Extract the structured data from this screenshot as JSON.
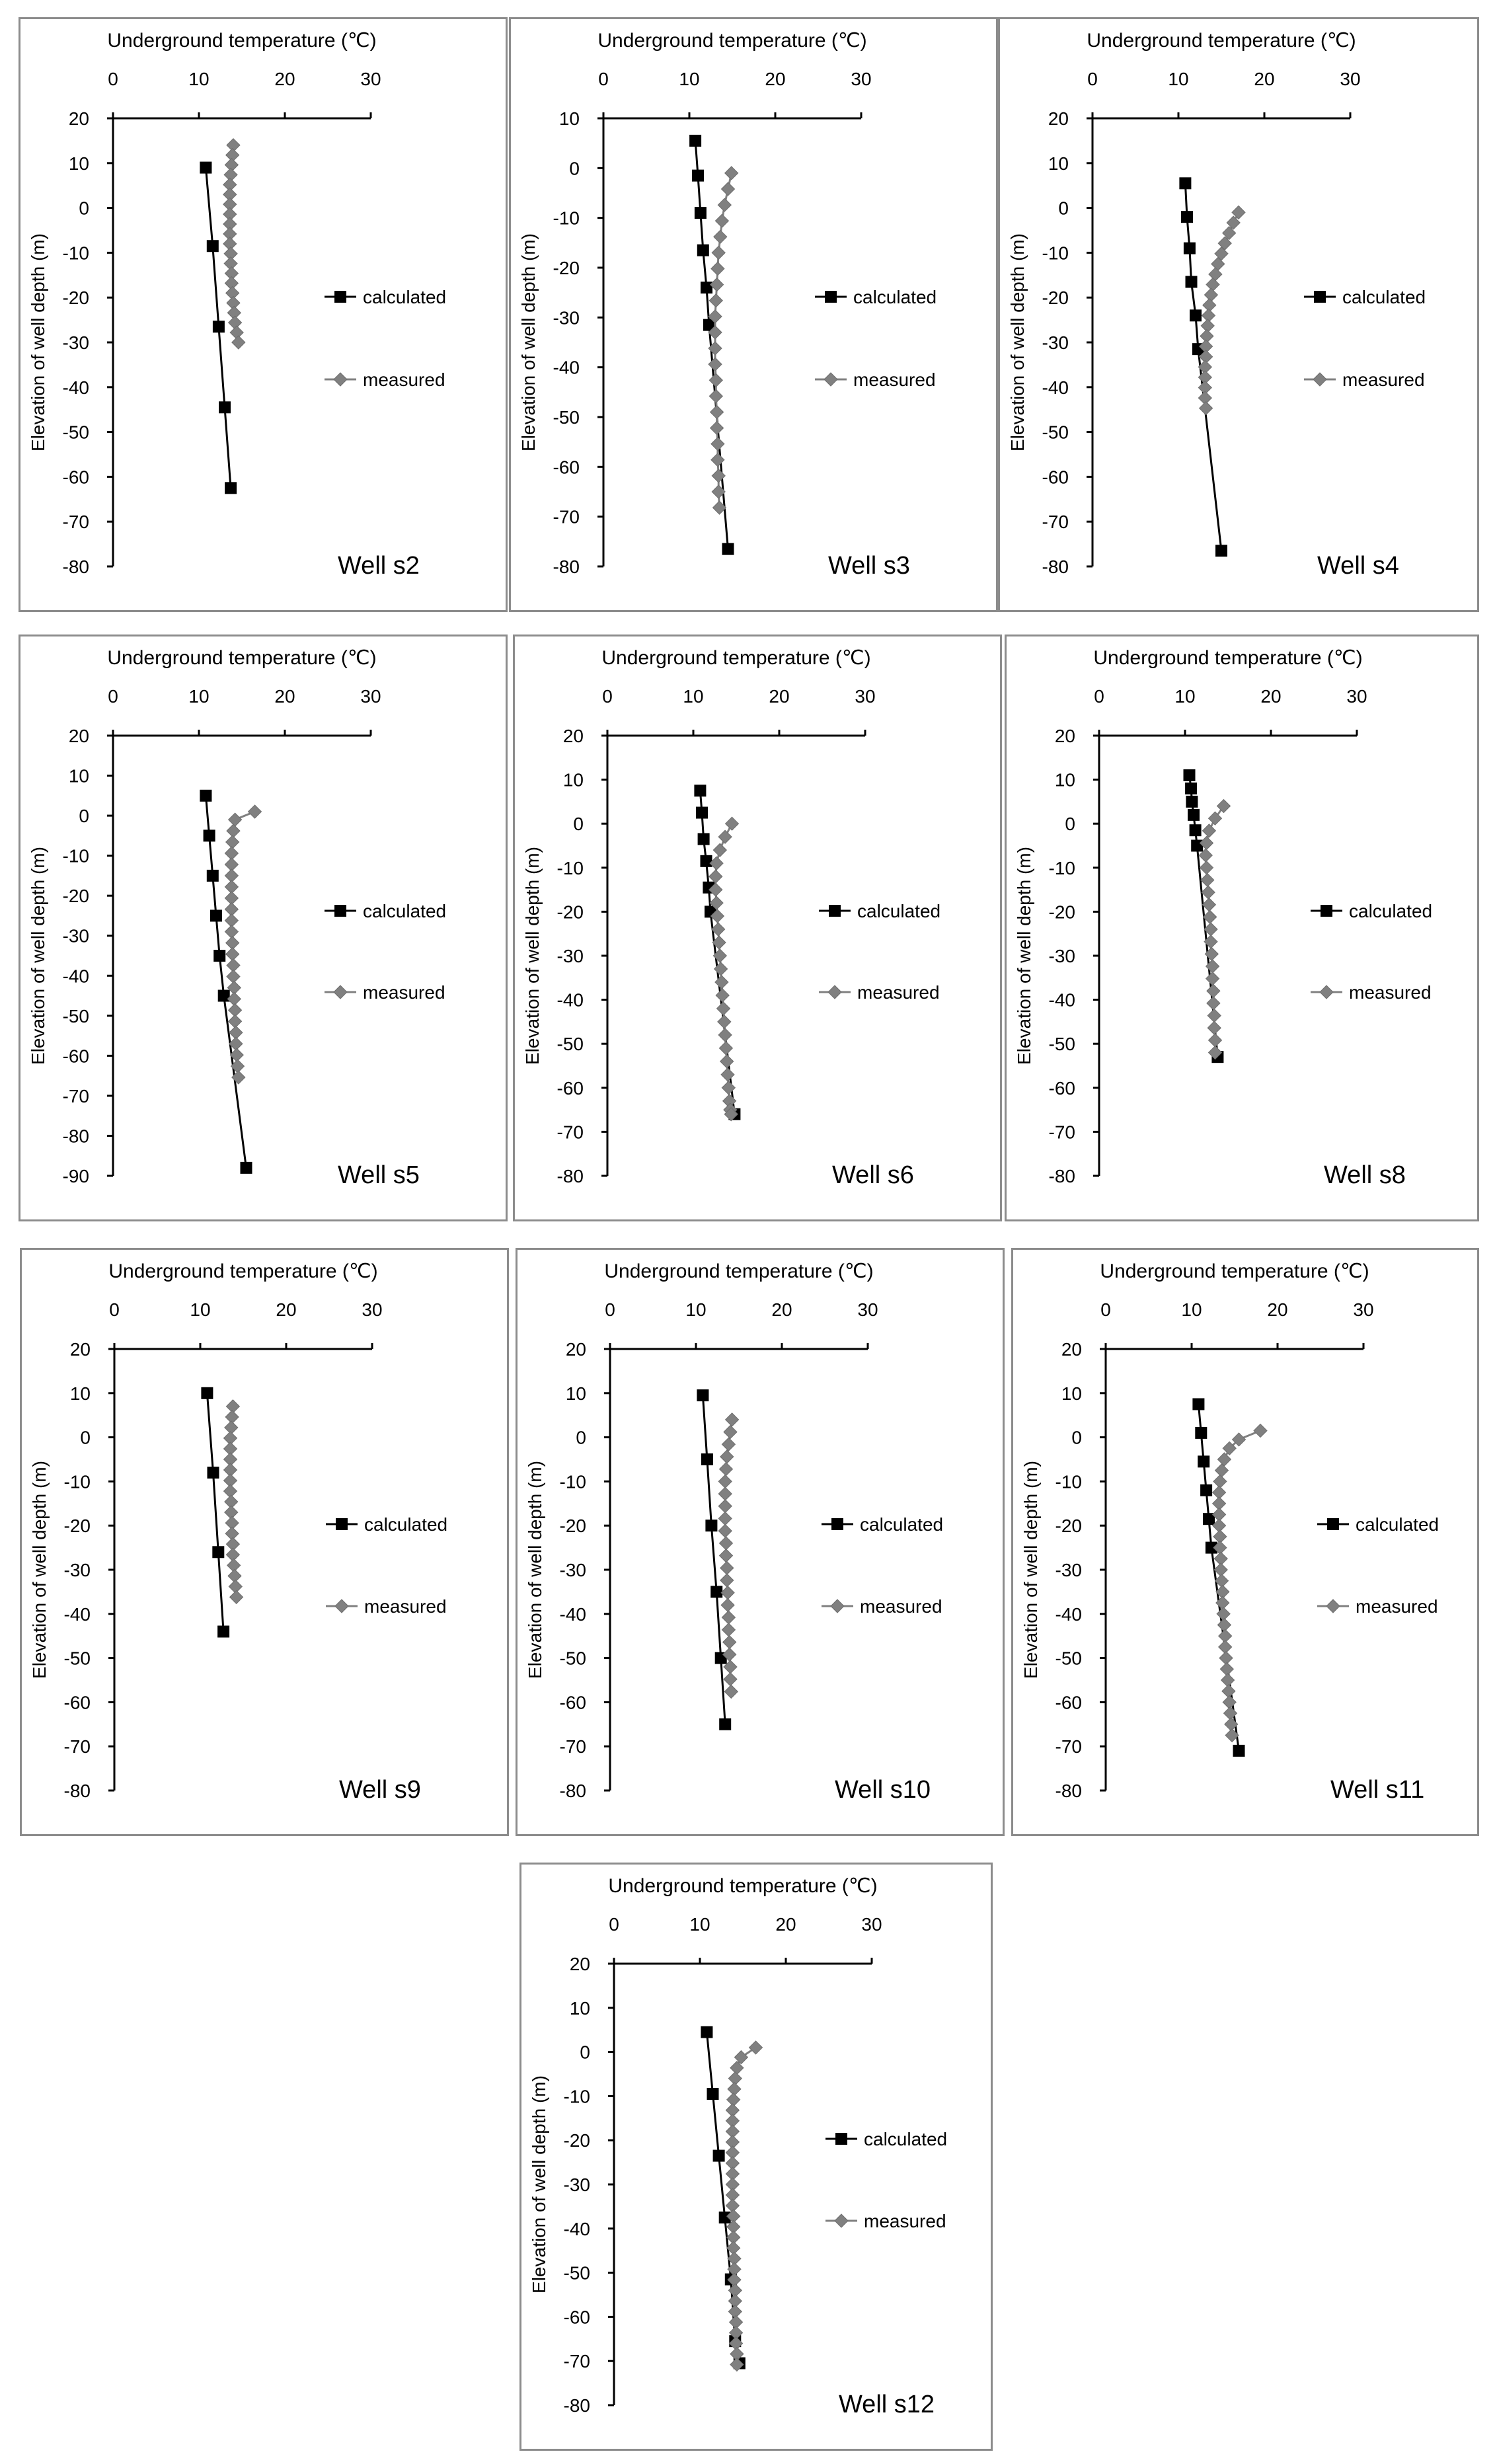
{
  "figure": {
    "common": {
      "xlabel": "Underground temperature (℃)",
      "ylabel": "Elevation of well depth (m)",
      "xlim": [
        0,
        30
      ],
      "xticks": [
        0,
        10,
        20,
        30
      ],
      "legend": [
        "calculated",
        "measured"
      ],
      "colors": {
        "calculated": "#000000",
        "measured": "#808080"
      }
    }
  },
  "chart_data": [
    {
      "type": "line",
      "title": "Well s2",
      "xlabel": "Underground temperature (℃)",
      "ylabel": "Elevation of well depth (m)",
      "xlim": [
        0,
        30
      ],
      "ylim": [
        -80,
        20
      ],
      "xticks": [
        0,
        10,
        20,
        30
      ],
      "yticks": [
        20,
        10,
        0,
        -10,
        -20,
        -30,
        -40,
        -50,
        -60,
        -70,
        -80
      ],
      "series": [
        {
          "name": "calculated",
          "x": [
            10.8,
            11.6,
            12.3,
            13.0,
            13.7
          ],
          "y": [
            9,
            -8.5,
            -26.5,
            -44.5,
            -62.5
          ]
        },
        {
          "name": "measured",
          "x": [
            14.0,
            13.9,
            13.8,
            13.7,
            13.6,
            13.6,
            13.6,
            13.6,
            13.6,
            13.6,
            13.6,
            13.7,
            13.7,
            13.8,
            13.8,
            13.9,
            14.0,
            14.1,
            14.2,
            14.4,
            14.6
          ],
          "y": [
            14,
            11.8,
            9.6,
            7.4,
            5.2,
            3.0,
            0.8,
            -1.4,
            -3.6,
            -5.8,
            -8.0,
            -10.2,
            -12.4,
            -14.6,
            -16.8,
            -19.0,
            -21.2,
            -23.4,
            -25.6,
            -27.8,
            -30.0
          ]
        }
      ]
    },
    {
      "type": "line",
      "title": "Well s3",
      "xlabel": "Underground temperature (℃)",
      "ylabel": "Elevation of well depth (m)",
      "xlim": [
        0,
        30
      ],
      "ylim": [
        -80,
        10
      ],
      "xticks": [
        0,
        10,
        20,
        30
      ],
      "yticks": [
        10,
        0,
        -10,
        -20,
        -30,
        -40,
        -50,
        -60,
        -70,
        -80
      ],
      "series": [
        {
          "name": "calculated",
          "x": [
            10.7,
            11.0,
            11.3,
            11.6,
            12.0,
            12.3,
            14.5
          ],
          "y": [
            5.5,
            -1.5,
            -9,
            -16.5,
            -24,
            -31.5,
            -76.5
          ]
        },
        {
          "name": "measured",
          "x": [
            14.9,
            14.5,
            14.1,
            13.8,
            13.6,
            13.4,
            13.3,
            13.2,
            13.1,
            13.0,
            13.0,
            13.0,
            13.0,
            13.1,
            13.1,
            13.2,
            13.2,
            13.3,
            13.3,
            13.4,
            13.4,
            13.5
          ],
          "y": [
            -1.0,
            -4.2,
            -7.4,
            -10.6,
            -13.8,
            -17.0,
            -20.2,
            -23.4,
            -26.6,
            -29.8,
            -33.0,
            -36.2,
            -39.4,
            -42.6,
            -45.8,
            -49.0,
            -52.2,
            -55.4,
            -58.6,
            -61.8,
            -65.0,
            -68.2
          ]
        }
      ]
    },
    {
      "type": "line",
      "title": "Well s4",
      "xlabel": "Underground temperature (℃)",
      "ylabel": "Elevation of well depth (m)",
      "xlim": [
        0,
        30
      ],
      "ylim": [
        -80,
        20
      ],
      "xticks": [
        0,
        10,
        20,
        30
      ],
      "yticks": [
        20,
        10,
        0,
        -10,
        -20,
        -30,
        -40,
        -50,
        -60,
        -70,
        -80
      ],
      "series": [
        {
          "name": "calculated",
          "x": [
            10.8,
            11.0,
            11.3,
            11.5,
            12.0,
            12.3,
            15.0
          ],
          "y": [
            5.5,
            -2,
            -9,
            -16.5,
            -24,
            -31.5,
            -76.5
          ]
        },
        {
          "name": "measured",
          "x": [
            17.0,
            16.4,
            15.9,
            15.4,
            15.0,
            14.6,
            14.3,
            14.0,
            13.8,
            13.6,
            13.5,
            13.4,
            13.3,
            13.2,
            13.2,
            13.1,
            13.1,
            13.1,
            13.1,
            13.2
          ],
          "y": [
            -1,
            -3.3,
            -5.6,
            -7.9,
            -10.2,
            -12.5,
            -14.8,
            -17.1,
            -19.4,
            -21.7,
            -24.0,
            -26.3,
            -28.6,
            -30.9,
            -33.2,
            -35.5,
            -37.8,
            -40.1,
            -42.4,
            -44.7
          ]
        }
      ]
    },
    {
      "type": "line",
      "title": "Well s5",
      "xlabel": "Underground temperature (℃)",
      "ylabel": "Elevation of well depth (m)",
      "xlim": [
        0,
        30
      ],
      "ylim": [
        -90,
        20
      ],
      "xticks": [
        0,
        10,
        20,
        30
      ],
      "yticks": [
        20,
        10,
        0,
        -10,
        -20,
        -30,
        -40,
        -50,
        -60,
        -70,
        -80,
        -90
      ],
      "series": [
        {
          "name": "calculated",
          "x": [
            10.8,
            11.2,
            11.6,
            12.0,
            12.4,
            12.9,
            15.5
          ],
          "y": [
            5,
            -5,
            -15,
            -25,
            -35,
            -45,
            -88
          ]
        },
        {
          "name": "measured",
          "x": [
            16.5,
            14.2,
            14.0,
            13.9,
            13.8,
            13.8,
            13.8,
            13.8,
            13.8,
            13.8,
            13.8,
            13.8,
            13.9,
            13.9,
            14.0,
            14.0,
            14.1,
            14.1,
            14.2,
            14.2,
            14.3,
            14.3,
            14.4,
            14.5,
            14.6
          ],
          "y": [
            1,
            -1.0,
            -3.8,
            -6.6,
            -9.4,
            -12.2,
            -15.0,
            -17.8,
            -20.6,
            -23.4,
            -26.2,
            -29.0,
            -31.8,
            -34.6,
            -37.4,
            -40.2,
            -43.0,
            -45.8,
            -48.6,
            -51.4,
            -54.2,
            -57.0,
            -59.8,
            -62.6,
            -65.4
          ]
        }
      ]
    },
    {
      "type": "line",
      "title": "Well s6",
      "xlabel": "Underground temperature (℃)",
      "ylabel": "Elevation of well depth (m)",
      "xlim": [
        0,
        30
      ],
      "ylim": [
        -80,
        20
      ],
      "xticks": [
        0,
        10,
        20,
        30
      ],
      "yticks": [
        20,
        10,
        0,
        -10,
        -20,
        -30,
        -40,
        -50,
        -60,
        -70,
        -80
      ],
      "series": [
        {
          "name": "calculated",
          "x": [
            10.8,
            11.0,
            11.2,
            11.5,
            11.8,
            12.0,
            14.8
          ],
          "y": [
            7.5,
            2.5,
            -3.5,
            -8.5,
            -14.5,
            -20,
            -66
          ]
        },
        {
          "name": "measured",
          "x": [
            14.5,
            13.7,
            13.1,
            12.7,
            12.6,
            12.6,
            12.7,
            12.8,
            12.9,
            13.0,
            13.1,
            13.2,
            13.3,
            13.4,
            13.5,
            13.6,
            13.7,
            13.8,
            13.9,
            14.0,
            14.1,
            14.2,
            14.3,
            14.4
          ],
          "y": [
            0,
            -3,
            -6,
            -9,
            -12,
            -15,
            -18,
            -21,
            -24,
            -27,
            -30,
            -33,
            -36,
            -39,
            -42,
            -45,
            -48,
            -51,
            -54,
            -57,
            -60,
            -63,
            -65,
            -66
          ]
        }
      ]
    },
    {
      "type": "line",
      "title": "Well s8",
      "xlabel": "Underground temperature (℃)",
      "ylabel": "Elevation of well depth (m)",
      "xlim": [
        0,
        30
      ],
      "ylim": [
        -80,
        20
      ],
      "xticks": [
        0,
        10,
        20,
        30
      ],
      "yticks": [
        20,
        10,
        0,
        -10,
        -20,
        -30,
        -40,
        -50,
        -60,
        -70,
        -80
      ],
      "series": [
        {
          "name": "calculated",
          "x": [
            10.5,
            10.7,
            10.8,
            11.0,
            11.2,
            11.4,
            13.8
          ],
          "y": [
            11,
            8,
            5,
            2,
            -1.5,
            -5,
            -53
          ]
        },
        {
          "name": "measured",
          "x": [
            14.5,
            13.5,
            12.8,
            12.5,
            12.4,
            12.5,
            12.6,
            12.7,
            12.8,
            12.9,
            13.0,
            13.0,
            13.1,
            13.2,
            13.2,
            13.3,
            13.3,
            13.4,
            13.4,
            13.5,
            13.5
          ],
          "y": [
            4,
            1.2,
            -1.6,
            -4.4,
            -7.2,
            -10.0,
            -12.8,
            -15.6,
            -18.4,
            -21.2,
            -24.0,
            -26.8,
            -29.6,
            -32.4,
            -35.2,
            -38.0,
            -40.8,
            -43.6,
            -46.4,
            -49.2,
            -52.0
          ]
        }
      ]
    },
    {
      "type": "line",
      "title": "Well s9",
      "xlabel": "Underground temperature (℃)",
      "ylabel": "Elevation of well depth (m)",
      "xlim": [
        0,
        30
      ],
      "ylim": [
        -80,
        20
      ],
      "xticks": [
        0,
        10,
        20,
        30
      ],
      "yticks": [
        20,
        10,
        0,
        -10,
        -20,
        -30,
        -40,
        -50,
        -60,
        -70,
        -80
      ],
      "series": [
        {
          "name": "calculated",
          "x": [
            10.8,
            11.5,
            12.1,
            12.7
          ],
          "y": [
            10,
            -8,
            -26,
            -44
          ]
        },
        {
          "name": "measured",
          "x": [
            13.8,
            13.7,
            13.6,
            13.5,
            13.5,
            13.5,
            13.5,
            13.5,
            13.5,
            13.6,
            13.6,
            13.7,
            13.7,
            13.8,
            13.8,
            13.9,
            14.0,
            14.1,
            14.2
          ],
          "y": [
            7,
            4.6,
            2.2,
            -0.2,
            -2.6,
            -5.0,
            -7.4,
            -9.8,
            -12.2,
            -14.6,
            -17.0,
            -19.4,
            -21.8,
            -24.2,
            -26.6,
            -29.0,
            -31.4,
            -33.8,
            -36.2
          ]
        }
      ]
    },
    {
      "type": "line",
      "title": "Well s10",
      "xlabel": "Underground temperature (℃)",
      "ylabel": "Elevation of well depth (m)",
      "xlim": [
        0,
        30
      ],
      "ylim": [
        -80,
        20
      ],
      "xticks": [
        0,
        10,
        20,
        30
      ],
      "yticks": [
        20,
        10,
        0,
        -10,
        -20,
        -30,
        -40,
        -50,
        -60,
        -70,
        -80
      ],
      "series": [
        {
          "name": "calculated",
          "x": [
            10.8,
            11.3,
            11.8,
            12.4,
            12.9,
            13.4
          ],
          "y": [
            9.5,
            -5,
            -20,
            -35,
            -50,
            -65
          ]
        },
        {
          "name": "measured",
          "x": [
            14.2,
            14.0,
            13.8,
            13.6,
            13.5,
            13.4,
            13.4,
            13.4,
            13.4,
            13.4,
            13.5,
            13.5,
            13.6,
            13.6,
            13.7,
            13.7,
            13.8,
            13.8,
            13.9,
            13.9,
            14.0,
            14.0,
            14.1
          ],
          "y": [
            4,
            1.2,
            -1.6,
            -4.4,
            -7.2,
            -10.0,
            -12.8,
            -15.6,
            -18.4,
            -21.2,
            -24.0,
            -26.8,
            -29.6,
            -32.4,
            -35.2,
            -38.0,
            -40.8,
            -43.6,
            -46.4,
            -49.2,
            -52.0,
            -54.8,
            -57.6
          ]
        }
      ]
    },
    {
      "type": "line",
      "title": "Well s11",
      "xlabel": "Underground temperature (℃)",
      "ylabel": "Elevation of well depth (m)",
      "xlim": [
        0,
        30
      ],
      "ylim": [
        -80,
        20
      ],
      "xticks": [
        0,
        10,
        20,
        30
      ],
      "yticks": [
        20,
        10,
        0,
        -10,
        -20,
        -30,
        -40,
        -50,
        -60,
        -70,
        -80
      ],
      "series": [
        {
          "name": "calculated",
          "x": [
            10.8,
            11.1,
            11.4,
            11.7,
            12.0,
            12.3,
            15.5
          ],
          "y": [
            7.5,
            1,
            -5.5,
            -12,
            -18.5,
            -25,
            -71
          ]
        },
        {
          "name": "measured",
          "x": [
            18.0,
            15.5,
            14.4,
            13.8,
            13.5,
            13.3,
            13.2,
            13.2,
            13.2,
            13.2,
            13.3,
            13.3,
            13.4,
            13.4,
            13.5,
            13.6,
            13.6,
            13.7,
            13.8,
            13.9,
            13.9,
            14.0,
            14.1,
            14.2,
            14.3,
            14.4,
            14.5,
            14.6,
            14.7
          ],
          "y": [
            1.5,
            -0.5,
            -2.5,
            -5.0,
            -7.5,
            -10.0,
            -12.5,
            -15.0,
            -17.5,
            -20.0,
            -22.5,
            -25.0,
            -27.5,
            -30.0,
            -32.5,
            -35.0,
            -37.5,
            -40.0,
            -42.5,
            -45.0,
            -47.5,
            -50.0,
            -52.5,
            -55.0,
            -57.5,
            -60.0,
            -62.5,
            -65.0,
            -67.5
          ]
        }
      ]
    },
    {
      "type": "line",
      "title": "Well s12",
      "xlabel": "Underground temperature (℃)",
      "ylabel": "Elevation of well depth (m)",
      "xlim": [
        0,
        30
      ],
      "ylim": [
        -80,
        20
      ],
      "xticks": [
        0,
        10,
        20,
        30
      ],
      "yticks": [
        20,
        10,
        0,
        -10,
        -20,
        -30,
        -40,
        -50,
        -60,
        -70,
        -80
      ],
      "series": [
        {
          "name": "calculated",
          "x": [
            10.8,
            11.5,
            12.2,
            12.9,
            13.6,
            14.1,
            14.6
          ],
          "y": [
            4.5,
            -9.5,
            -23.5,
            -37.5,
            -51.5,
            -65.5,
            -70.5
          ]
        },
        {
          "name": "measured",
          "x": [
            16.5,
            14.8,
            14.3,
            14.1,
            14.0,
            13.9,
            13.8,
            13.8,
            13.8,
            13.8,
            13.8,
            13.8,
            13.8,
            13.8,
            13.8,
            13.8,
            13.9,
            13.9,
            13.9,
            13.9,
            14.0,
            14.0,
            14.0,
            14.1,
            14.1,
            14.1,
            14.2,
            14.2,
            14.2,
            14.3,
            14.3
          ],
          "y": [
            1,
            -1.2,
            -3.6,
            -6.0,
            -8.4,
            -10.8,
            -13.2,
            -15.6,
            -18.0,
            -20.4,
            -22.8,
            -25.2,
            -27.6,
            -30.0,
            -32.4,
            -34.8,
            -37.2,
            -39.6,
            -42.0,
            -44.4,
            -46.8,
            -49.2,
            -51.6,
            -54.0,
            -56.4,
            -58.8,
            -61.2,
            -63.6,
            -66.0,
            -68.4,
            -70.8
          ]
        }
      ]
    }
  ]
}
